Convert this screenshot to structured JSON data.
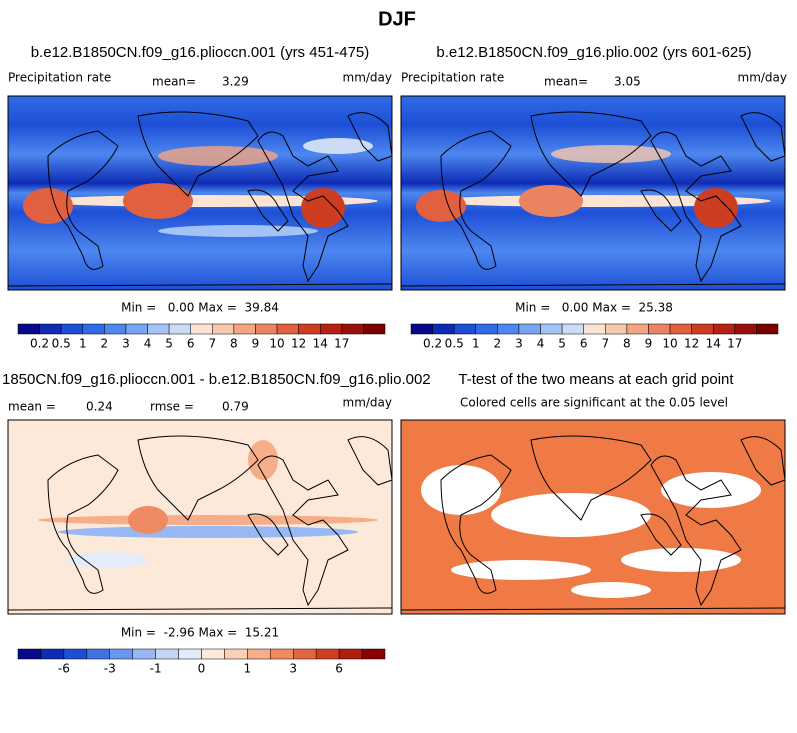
{
  "title": "DJF",
  "panels": [
    {
      "title": "b.e12.B1850CN.f09_g16.plioccn.001 (yrs 451-475)",
      "left_label": "Precipitation rate",
      "mean_label": "mean=",
      "mean": "3.29",
      "units": "mm/day",
      "stats": "Min =   0.00 Max =  39.84",
      "colorbar": {
        "labels": [
          "0.2",
          "0.5",
          "1",
          "2",
          "3",
          "4",
          "5",
          "6",
          "7",
          "8",
          "9",
          "10",
          "12",
          "14",
          "17"
        ],
        "colors": [
          "#08088a",
          "#0d2bb5",
          "#1d4fd6",
          "#2f6be6",
          "#4d87ef",
          "#77a5f3",
          "#a3c2f5",
          "#cddcf6",
          "#fbe4d3",
          "#f8c8ab",
          "#f4a582",
          "#ec8360",
          "#e06040",
          "#cc3d22",
          "#b52214",
          "#98100a",
          "#7a0000"
        ]
      }
    },
    {
      "title": "b.e12.B1850CN.f09_g16.plio.002 (yrs 601-625)",
      "left_label": "Precipitation rate",
      "mean_label": "mean=",
      "mean": "3.05",
      "units": "mm/day",
      "stats": "Min =   0.00 Max =  25.38",
      "colorbar": {
        "labels": [
          "0.2",
          "0.5",
          "1",
          "2",
          "3",
          "4",
          "5",
          "6",
          "7",
          "8",
          "9",
          "10",
          "12",
          "14",
          "17"
        ],
        "colors": [
          "#08088a",
          "#0d2bb5",
          "#1d4fd6",
          "#2f6be6",
          "#4d87ef",
          "#77a5f3",
          "#a3c2f5",
          "#cddcf6",
          "#fbe4d3",
          "#f8c8ab",
          "#f4a582",
          "#ec8360",
          "#e06040",
          "#cc3d22",
          "#b52214",
          "#98100a",
          "#7a0000"
        ]
      }
    },
    {
      "title": "1850CN.f09_g16.plioccn.001 - b.e12.B1850CN.f09_g16.plio.002",
      "mean_label": "mean =",
      "mean": "0.24",
      "rmse_label": "rmse =",
      "rmse": "0.79",
      "units": "mm/day",
      "stats": "Min =  -2.96 Max =  15.21",
      "colorbar": {
        "labels": [
          null,
          "-6",
          null,
          "-3",
          null,
          "-1",
          null,
          "0",
          null,
          "1",
          null,
          "3",
          null,
          "6",
          null
        ],
        "colors": [
          "#08088a",
          "#0d2bb5",
          "#1d4fd6",
          "#3f72e5",
          "#6b98ef",
          "#98b8f3",
          "#c4d6f6",
          "#e3ecfa",
          "#fde9d9",
          "#fbd0b4",
          "#f6ad8a",
          "#ef8a63",
          "#e3653f",
          "#cf3f22",
          "#b01e10",
          "#8a0000"
        ]
      }
    },
    {
      "title": "T-test of the two means at each grid point",
      "subtitle": "Colored cells are significant at the 0.05 level"
    }
  ]
}
